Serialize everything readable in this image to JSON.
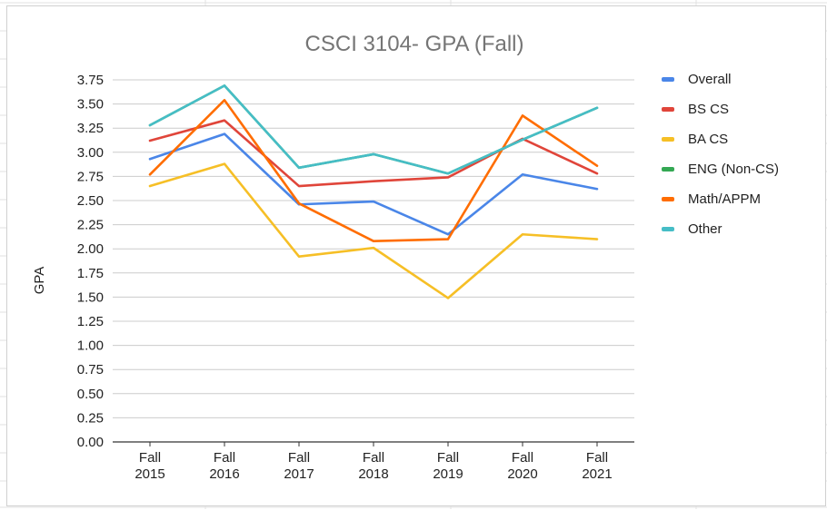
{
  "chart_data": {
    "type": "line",
    "title": "CSCI 3104- GPA (Fall)",
    "xlabel": "",
    "ylabel": "GPA",
    "ylim": [
      0,
      3.75
    ],
    "yticks": [
      "0.00",
      "0.25",
      "0.50",
      "0.75",
      "1.00",
      "1.25",
      "1.50",
      "1.75",
      "2.00",
      "2.25",
      "2.50",
      "2.75",
      "3.00",
      "3.25",
      "3.50",
      "3.75"
    ],
    "categories": [
      [
        "Fall",
        "2015"
      ],
      [
        "Fall",
        "2016"
      ],
      [
        "Fall",
        "2017"
      ],
      [
        "Fall",
        "2018"
      ],
      [
        "Fall",
        "2019"
      ],
      [
        "Fall",
        "2020"
      ],
      [
        "Fall",
        "2021"
      ]
    ],
    "grid": true,
    "legend_position": "right",
    "series": [
      {
        "name": "Overall",
        "color": "#4a86e8",
        "values": [
          2.93,
          3.19,
          2.46,
          2.49,
          2.15,
          2.77,
          2.62
        ]
      },
      {
        "name": "BS CS",
        "color": "#e0453a",
        "values": [
          3.12,
          3.33,
          2.65,
          2.7,
          2.74,
          3.14,
          2.78
        ]
      },
      {
        "name": "BA CS",
        "color": "#f6bf26",
        "values": [
          2.65,
          2.88,
          1.92,
          2.01,
          1.49,
          2.15,
          2.1
        ]
      },
      {
        "name": "ENG (Non-CS)",
        "color": "#34a853",
        "values": [
          3.28,
          3.69,
          2.84,
          2.98,
          2.78,
          3.13,
          3.46
        ]
      },
      {
        "name": "Math/APPM",
        "color": "#ff6d01",
        "values": [
          2.77,
          3.54,
          2.47,
          2.08,
          2.1,
          3.38,
          2.86
        ]
      },
      {
        "name": "Other",
        "color": "#46bdc6",
        "values": [
          3.28,
          3.69,
          2.84,
          2.98,
          2.78,
          3.13,
          3.46
        ]
      }
    ]
  }
}
